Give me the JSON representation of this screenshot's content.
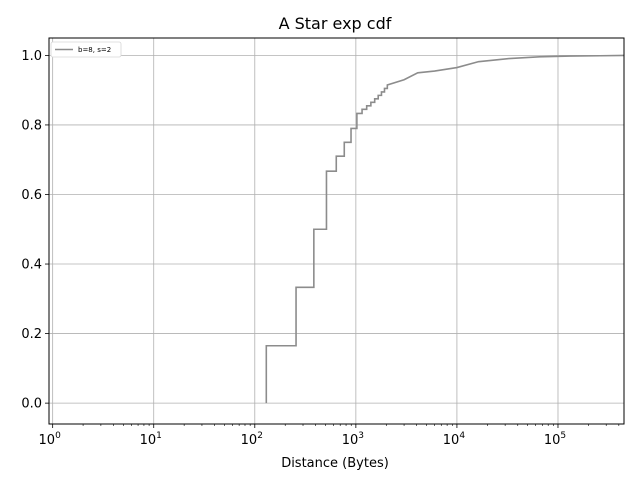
{
  "chart_data": {
    "type": "line",
    "title": "A Star exp cdf",
    "xlabel": "Distance (Bytes)",
    "ylabel": "",
    "xscale": "log",
    "xlim": [
      0.92,
      450000
    ],
    "ylim": [
      -0.06,
      1.05
    ],
    "grid": true,
    "legend_placement": "top-left",
    "x_ticks": [
      {
        "value": 1,
        "base": "10",
        "exp": "0"
      },
      {
        "value": 10,
        "base": "10",
        "exp": "1"
      },
      {
        "value": 100,
        "base": "10",
        "exp": "2"
      },
      {
        "value": 1000,
        "base": "10",
        "exp": "3"
      },
      {
        "value": 10000,
        "base": "10",
        "exp": "4"
      },
      {
        "value": 100000,
        "base": "10",
        "exp": "5"
      }
    ],
    "y_ticks": [
      {
        "value": 0.0,
        "label": "0.0"
      },
      {
        "value": 0.2,
        "label": "0.2"
      },
      {
        "value": 0.4,
        "label": "0.4"
      },
      {
        "value": 0.6,
        "label": "0.6"
      },
      {
        "value": 0.8,
        "label": "0.8"
      },
      {
        "value": 1.0,
        "label": "1.0"
      }
    ],
    "series": [
      {
        "name": "b=8, s=2",
        "color": "#8c8c8c",
        "points": [
          [
            130,
            0.0
          ],
          [
            130,
            0.165
          ],
          [
            256,
            0.165
          ],
          [
            256,
            0.333
          ],
          [
            384,
            0.333
          ],
          [
            384,
            0.5
          ],
          [
            512,
            0.5
          ],
          [
            512,
            0.667
          ],
          [
            640,
            0.667
          ],
          [
            640,
            0.71
          ],
          [
            768,
            0.71
          ],
          [
            768,
            0.75
          ],
          [
            896,
            0.75
          ],
          [
            896,
            0.79
          ],
          [
            1024,
            0.79
          ],
          [
            1024,
            0.833
          ],
          [
            1152,
            0.833
          ],
          [
            1152,
            0.845
          ],
          [
            1280,
            0.845
          ],
          [
            1280,
            0.855
          ],
          [
            1408,
            0.855
          ],
          [
            1408,
            0.865
          ],
          [
            1536,
            0.865
          ],
          [
            1536,
            0.875
          ],
          [
            1664,
            0.875
          ],
          [
            1664,
            0.885
          ],
          [
            1792,
            0.885
          ],
          [
            1792,
            0.895
          ],
          [
            1920,
            0.895
          ],
          [
            1920,
            0.905
          ],
          [
            2048,
            0.905
          ],
          [
            2048,
            0.915
          ],
          [
            3000,
            0.93
          ],
          [
            4096,
            0.95
          ],
          [
            6000,
            0.955
          ],
          [
            10000,
            0.965
          ],
          [
            16384,
            0.982
          ],
          [
            32768,
            0.991
          ],
          [
            65536,
            0.996
          ],
          [
            131072,
            0.998
          ],
          [
            262144,
            0.999
          ],
          [
            450000,
            1.0
          ]
        ]
      }
    ]
  }
}
